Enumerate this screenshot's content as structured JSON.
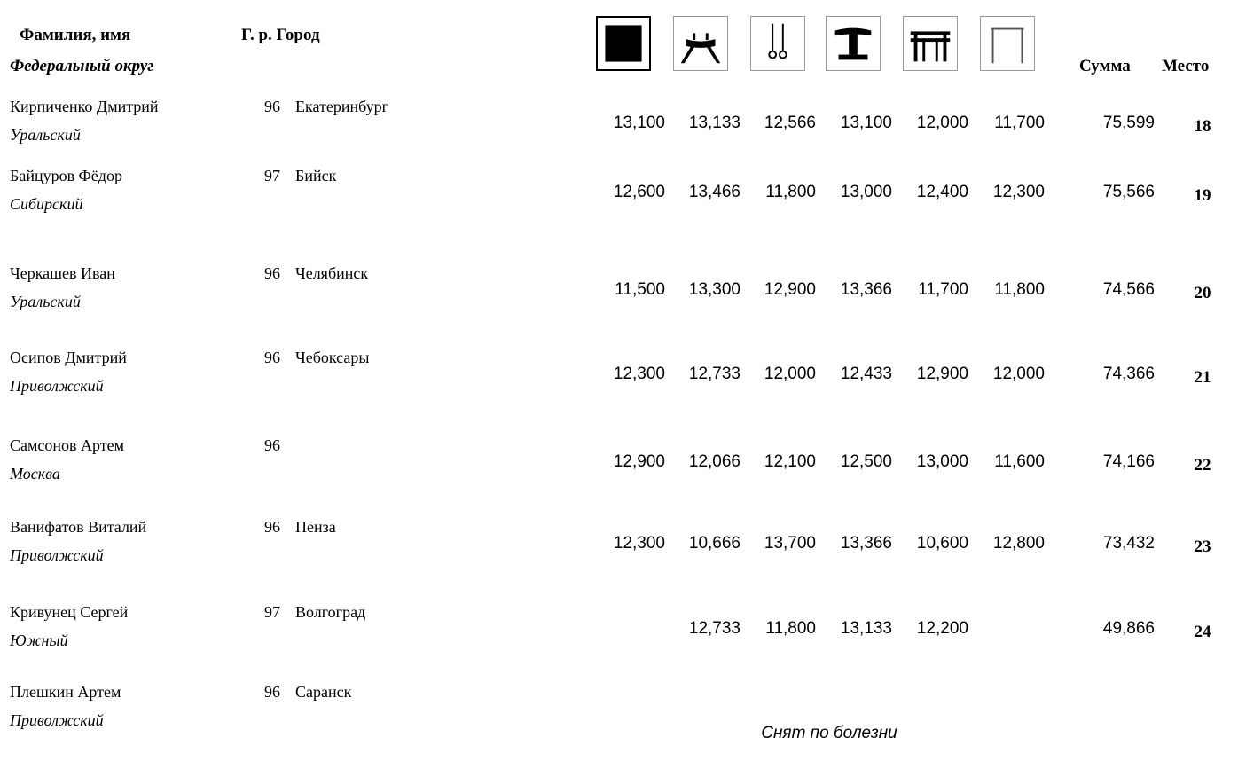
{
  "header": {
    "name_label": "Фамилия, имя",
    "region_label": "Федеральный округ",
    "birth_city_label": "Г. р. Город",
    "total_label": "Сумма",
    "place_label": "Место",
    "apparatus": [
      {
        "icon": "floor-exercise-icon"
      },
      {
        "icon": "pommel-horse-icon"
      },
      {
        "icon": "rings-icon"
      },
      {
        "icon": "vault-icon"
      },
      {
        "icon": "parallel-bars-icon"
      },
      {
        "icon": "horizontal-bar-icon"
      }
    ]
  },
  "rows": [
    {
      "name": "Кирпиченко Дмитрий",
      "region": "Уральский",
      "year": "96",
      "city": "Екатеринбург",
      "scores": [
        "13,100",
        "13,133",
        "12,566",
        "13,100",
        "12,000",
        "11,700"
      ],
      "total": "75,599",
      "place": "18"
    },
    {
      "name": "Байцуров Фёдор",
      "region": "Сибирский",
      "year": "97",
      "city": "Бийск",
      "scores": [
        "12,600",
        "13,466",
        "11,800",
        "13,000",
        "12,400",
        "12,300"
      ],
      "total": "75,566",
      "place": "19"
    },
    {
      "name": "Черкашев Иван",
      "region": "Уральский",
      "year": "96",
      "city": "Челябинск",
      "scores": [
        "11,500",
        "13,300",
        "12,900",
        "13,366",
        "11,700",
        "11,800"
      ],
      "total": "74,566",
      "place": "20"
    },
    {
      "name": "Осипов Дмитрий",
      "region": "Приволжский",
      "year": "96",
      "city": "Чебоксары",
      "scores": [
        "12,300",
        "12,733",
        "12,000",
        "12,433",
        "12,900",
        "12,000"
      ],
      "total": "74,366",
      "place": "21"
    },
    {
      "name": "Самсонов Артем",
      "region": "Москва",
      "year": "96",
      "city": "",
      "scores": [
        "12,900",
        "12,066",
        "12,100",
        "12,500",
        "13,000",
        "11,600"
      ],
      "total": "74,166",
      "place": "22"
    },
    {
      "name": "Ванифатов Виталий",
      "region": "Приволжский",
      "year": "96",
      "city": "Пенза",
      "scores": [
        "12,300",
        "10,666",
        "13,700",
        "13,366",
        "10,600",
        "12,800"
      ],
      "total": "73,432",
      "place": "23"
    },
    {
      "name": "Кривунец Сергей",
      "region": "Южный",
      "year": "97",
      "city": "Волгоград",
      "scores": [
        "",
        "12,733",
        "11,800",
        "13,133",
        "12,200",
        ""
      ],
      "total": "49,866",
      "place": "24"
    },
    {
      "name": "Плешкин Артем",
      "region": "Приволжский",
      "year": "96",
      "city": "Саранск",
      "scores": [
        "",
        "",
        "",
        "",
        "",
        ""
      ],
      "total": "",
      "place": "",
      "note": "Снят по болезни"
    }
  ]
}
